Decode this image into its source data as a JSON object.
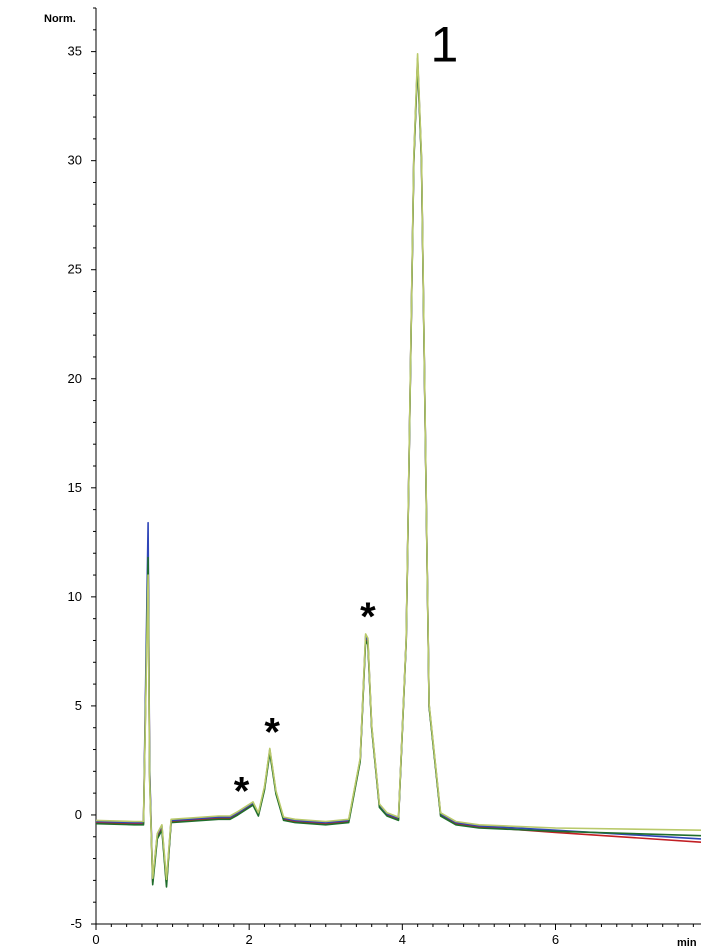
{
  "chart_data": {
    "type": "line",
    "title": "",
    "xlabel": "min",
    "ylabel": "Norm.",
    "xlim": [
      0,
      7.9
    ],
    "ylim": [
      -5,
      37
    ],
    "x_ticks": [
      0,
      2,
      4,
      6
    ],
    "y_ticks": [
      -5,
      0,
      5,
      10,
      15,
      20,
      25,
      30,
      35
    ],
    "x_tick_labels": [
      "0",
      "2",
      "4",
      "6"
    ],
    "y_tick_labels": [
      "-5",
      "0",
      "5",
      "10",
      "15",
      "20",
      "25",
      "30",
      "35"
    ],
    "grid": false,
    "legend": "none",
    "series": [
      {
        "color": "#c21f24",
        "x": [
          0,
          0.5,
          0.62,
          0.68,
          0.7,
          0.74,
          0.8,
          0.86,
          0.92,
          0.98,
          1.2,
          1.6,
          1.75,
          1.85,
          2.05,
          2.12,
          2.2,
          2.27,
          2.35,
          2.45,
          2.6,
          3.0,
          3.3,
          3.45,
          3.52,
          3.55,
          3.6,
          3.7,
          3.8,
          3.95,
          4.05,
          4.15,
          4.2,
          4.25,
          4.35,
          4.5,
          4.7,
          5.0,
          6.0,
          7.9
        ],
        "y": [
          -0.35,
          -0.4,
          -0.4,
          12.2,
          2.0,
          -3.1,
          -1.0,
          -0.6,
          -3.2,
          -0.3,
          -0.25,
          -0.15,
          -0.15,
          0.05,
          0.5,
          0.0,
          1.2,
          2.9,
          1.0,
          -0.2,
          -0.3,
          -0.4,
          -0.3,
          2.5,
          8.1,
          7.9,
          4.0,
          0.4,
          0.0,
          -0.2,
          8.0,
          30.0,
          34.6,
          30.0,
          5.0,
          0.0,
          -0.4,
          -0.55,
          -0.8,
          -1.25
        ]
      },
      {
        "color": "#2f46b8",
        "x": [
          0,
          0.5,
          0.62,
          0.68,
          0.7,
          0.74,
          0.8,
          0.86,
          0.92,
          0.98,
          1.2,
          1.6,
          1.75,
          1.85,
          2.05,
          2.12,
          2.2,
          2.27,
          2.35,
          2.45,
          2.6,
          3.0,
          3.3,
          3.45,
          3.52,
          3.55,
          3.6,
          3.7,
          3.8,
          3.95,
          4.05,
          4.15,
          4.2,
          4.25,
          4.35,
          4.5,
          4.7,
          5.0,
          6.0,
          7.9
        ],
        "y": [
          -0.3,
          -0.35,
          -0.35,
          13.4,
          2.2,
          -3.0,
          -0.9,
          -0.5,
          -3.1,
          -0.25,
          -0.2,
          -0.1,
          -0.1,
          0.1,
          0.55,
          0.05,
          1.25,
          3.0,
          1.05,
          -0.15,
          -0.25,
          -0.35,
          -0.25,
          2.55,
          8.2,
          8.0,
          4.05,
          0.45,
          0.05,
          -0.15,
          8.05,
          30.1,
          34.7,
          30.1,
          5.05,
          0.05,
          -0.35,
          -0.5,
          -0.7,
          -1.1
        ]
      },
      {
        "color": "#1f6e2c",
        "x": [
          0,
          0.5,
          0.62,
          0.68,
          0.7,
          0.74,
          0.8,
          0.86,
          0.92,
          0.98,
          1.2,
          1.6,
          1.75,
          1.85,
          2.05,
          2.12,
          2.2,
          2.27,
          2.35,
          2.45,
          2.6,
          3.0,
          3.3,
          3.45,
          3.52,
          3.55,
          3.6,
          3.7,
          3.8,
          3.95,
          4.05,
          4.15,
          4.2,
          4.25,
          4.35,
          4.5,
          4.7,
          5.0,
          6.0,
          7.9
        ],
        "y": [
          -0.4,
          -0.45,
          -0.45,
          11.8,
          1.8,
          -3.2,
          -1.1,
          -0.7,
          -3.3,
          -0.35,
          -0.3,
          -0.2,
          -0.2,
          0.0,
          0.45,
          -0.05,
          1.15,
          2.85,
          0.95,
          -0.25,
          -0.35,
          -0.45,
          -0.35,
          2.45,
          8.0,
          7.8,
          3.95,
          0.35,
          -0.05,
          -0.25,
          7.95,
          29.9,
          34.5,
          29.9,
          4.95,
          -0.05,
          -0.45,
          -0.6,
          -0.75,
          -0.95
        ]
      },
      {
        "color": "#b9c96a",
        "x": [
          0,
          0.5,
          0.62,
          0.68,
          0.7,
          0.74,
          0.8,
          0.86,
          0.92,
          0.98,
          1.2,
          1.6,
          1.75,
          1.85,
          2.05,
          2.12,
          2.2,
          2.27,
          2.35,
          2.45,
          2.6,
          3.0,
          3.3,
          3.45,
          3.52,
          3.55,
          3.6,
          3.7,
          3.8,
          3.95,
          4.05,
          4.15,
          4.2,
          4.25,
          4.35,
          4.5,
          4.7,
          5.0,
          6.0,
          7.9
        ],
        "y": [
          -0.25,
          -0.3,
          -0.3,
          11.0,
          1.6,
          -2.9,
          -0.85,
          -0.45,
          -2.95,
          -0.2,
          -0.15,
          -0.05,
          -0.05,
          0.15,
          0.6,
          0.1,
          1.3,
          3.05,
          1.1,
          -0.1,
          -0.2,
          -0.3,
          -0.2,
          2.6,
          8.3,
          8.1,
          4.1,
          0.5,
          0.1,
          -0.1,
          8.1,
          30.2,
          34.9,
          30.2,
          5.1,
          0.1,
          -0.3,
          -0.45,
          -0.6,
          -0.7
        ]
      }
    ],
    "annotations": [
      {
        "label": "*",
        "x": 1.9,
        "y": 1.3,
        "size": "medium"
      },
      {
        "label": "*",
        "x": 2.3,
        "y": 4.0,
        "size": "medium"
      },
      {
        "label": "*",
        "x": 3.55,
        "y": 9.3,
        "size": "medium"
      },
      {
        "label": "1",
        "x": 4.55,
        "y": 35.2,
        "size": "large"
      }
    ]
  }
}
